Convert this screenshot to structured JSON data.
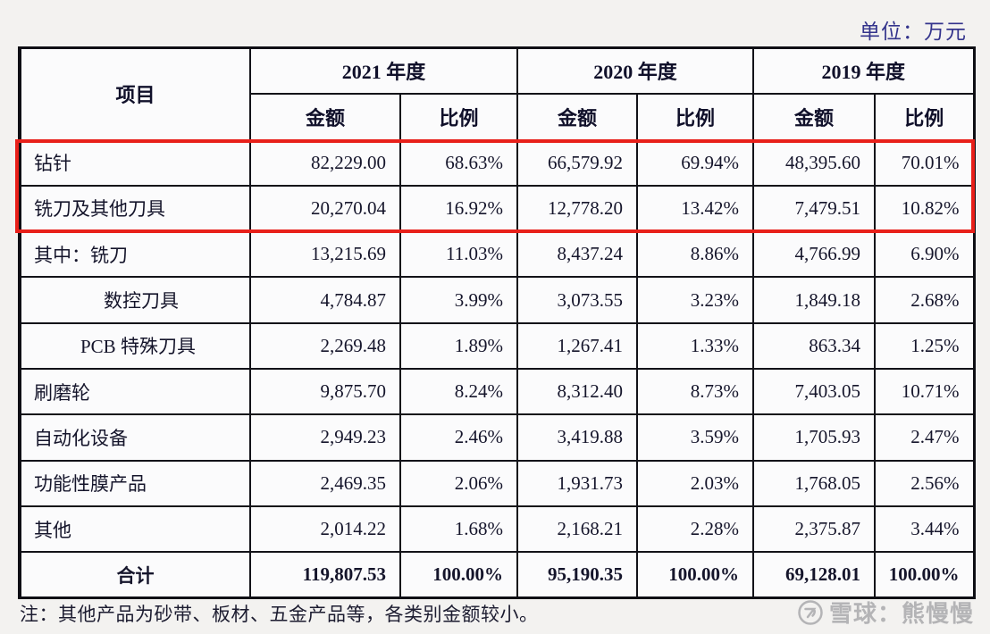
{
  "unit_label": "单位：万元",
  "table": {
    "item_header": "项目",
    "year_groups": [
      "2021 年度",
      "2020 年度",
      "2019 年度"
    ],
    "sub_headers": {
      "amount": "金额",
      "ratio": "比例"
    },
    "rows": [
      {
        "item": "钻针",
        "indent": 0,
        "highlight": true,
        "total": false,
        "values": [
          "82,229.00",
          "68.63%",
          "66,579.92",
          "69.94%",
          "48,395.60",
          "70.01%"
        ]
      },
      {
        "item": "铣刀及其他刀具",
        "indent": 0,
        "highlight": true,
        "total": false,
        "values": [
          "20,270.04",
          "16.92%",
          "12,778.20",
          "13.42%",
          "7,479.51",
          "10.82%"
        ]
      },
      {
        "item": "其中：铣刀",
        "indent": 0,
        "highlight": false,
        "total": false,
        "values": [
          "13,215.69",
          "11.03%",
          "8,437.24",
          "8.86%",
          "4,766.99",
          "6.90%"
        ]
      },
      {
        "item": "数控刀具",
        "indent": 2,
        "highlight": false,
        "total": false,
        "values": [
          "4,784.87",
          "3.99%",
          "3,073.55",
          "3.23%",
          "1,849.18",
          "2.68%"
        ]
      },
      {
        "item": "PCB 特殊刀具",
        "indent": 1,
        "highlight": false,
        "total": false,
        "values": [
          "2,269.48",
          "1.89%",
          "1,267.41",
          "1.33%",
          "863.34",
          "1.25%"
        ]
      },
      {
        "item": "刷磨轮",
        "indent": 0,
        "highlight": false,
        "total": false,
        "values": [
          "9,875.70",
          "8.24%",
          "8,312.40",
          "8.73%",
          "7,403.05",
          "10.71%"
        ]
      },
      {
        "item": "自动化设备",
        "indent": 0,
        "highlight": false,
        "total": false,
        "values": [
          "2,949.23",
          "2.46%",
          "3,419.88",
          "3.59%",
          "1,705.93",
          "2.47%"
        ]
      },
      {
        "item": "功能性膜产品",
        "indent": 0,
        "highlight": false,
        "total": false,
        "values": [
          "2,469.35",
          "2.06%",
          "1,931.73",
          "2.03%",
          "1,768.05",
          "2.56%"
        ]
      },
      {
        "item": "其他",
        "indent": 0,
        "highlight": false,
        "total": false,
        "values": [
          "2,014.22",
          "1.68%",
          "2,168.21",
          "2.28%",
          "2,375.87",
          "3.44%"
        ]
      },
      {
        "item": "合计",
        "indent": 0,
        "highlight": false,
        "total": true,
        "values": [
          "119,807.53",
          "100.00%",
          "95,190.35",
          "100.00%",
          "69,128.01",
          "100.00%"
        ]
      }
    ]
  },
  "note": "注：其他产品为砂带、板材、五金产品等，各类别金额较小。",
  "watermark": {
    "icon": "xueqiu-logo",
    "text": "雪球：熊慢慢"
  },
  "colors": {
    "highlight_box": "#e8201a",
    "unit_label": "#34348c",
    "text": "#15152b",
    "watermark": "#b4b4b6"
  }
}
